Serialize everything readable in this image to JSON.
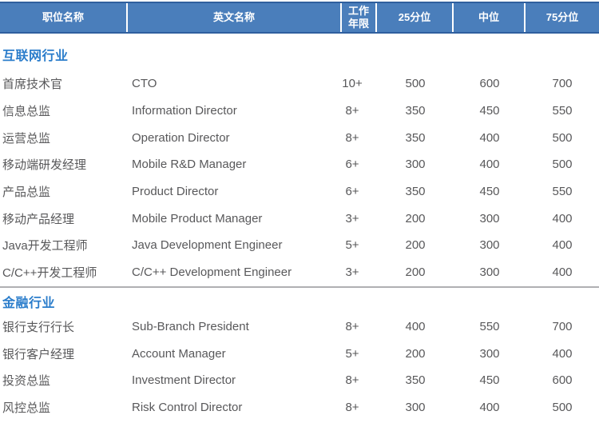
{
  "table": {
    "columns": [
      {
        "key": "title_cn",
        "label": "职位名称"
      },
      {
        "key": "title_en",
        "label": "英文名称"
      },
      {
        "key": "years",
        "label": "工作\n年限"
      },
      {
        "key": "p25",
        "label": "25分位"
      },
      {
        "key": "median",
        "label": "中位"
      },
      {
        "key": "p75",
        "label": "75分位"
      }
    ],
    "sections": [
      {
        "name": "互联网行业",
        "rows": [
          {
            "title_cn": "首席技术官",
            "title_en": "CTO",
            "years": "10+",
            "p25": "500",
            "median": "600",
            "p75": "700"
          },
          {
            "title_cn": "信息总监",
            "title_en": "Information Director",
            "years": "8+",
            "p25": "350",
            "median": "450",
            "p75": "550"
          },
          {
            "title_cn": "运营总监",
            "title_en": "Operation Director",
            "years": "8+",
            "p25": "350",
            "median": "400",
            "p75": "500"
          },
          {
            "title_cn": "移动端研发经理",
            "title_en": "Mobile R&D Manager",
            "years": "6+",
            "p25": "300",
            "median": "400",
            "p75": "500"
          },
          {
            "title_cn": "产品总监",
            "title_en": "Product Director",
            "years": "6+",
            "p25": "350",
            "median": "450",
            "p75": "550"
          },
          {
            "title_cn": "移动产品经理",
            "title_en": "Mobile Product Manager",
            "years": "3+",
            "p25": "200",
            "median": "300",
            "p75": "400"
          },
          {
            "title_cn": "Java开发工程师",
            "title_en": "Java Development Engineer",
            "years": "5+",
            "p25": "200",
            "median": "300",
            "p75": "400"
          },
          {
            "title_cn": "C/C++开发工程师",
            "title_en": "C/C++ Development Engineer",
            "years": "3+",
            "p25": "200",
            "median": "300",
            "p75": "400"
          }
        ]
      },
      {
        "name": "金融行业",
        "rows": [
          {
            "title_cn": "银行支行行长",
            "title_en": "Sub-Branch President",
            "years": "8+",
            "p25": "400",
            "median": "550",
            "p75": "700"
          },
          {
            "title_cn": "银行客户经理",
            "title_en": "Account Manager",
            "years": "5+",
            "p25": "200",
            "median": "300",
            "p75": "400"
          },
          {
            "title_cn": "投资总监",
            "title_en": "Investment Director",
            "years": "8+",
            "p25": "350",
            "median": "450",
            "p75": "600"
          },
          {
            "title_cn": "风控总监",
            "title_en": "Risk Control Director",
            "years": "8+",
            "p25": "300",
            "median": "400",
            "p75": "500"
          }
        ]
      }
    ]
  },
  "colors": {
    "header_background": "#4a7ebb",
    "header_border": "#2f5f9e",
    "header_text": "#ffffff",
    "section_title_text": "#2b7dcb",
    "body_text": "#58585a",
    "divider": "#b0b0b3"
  }
}
